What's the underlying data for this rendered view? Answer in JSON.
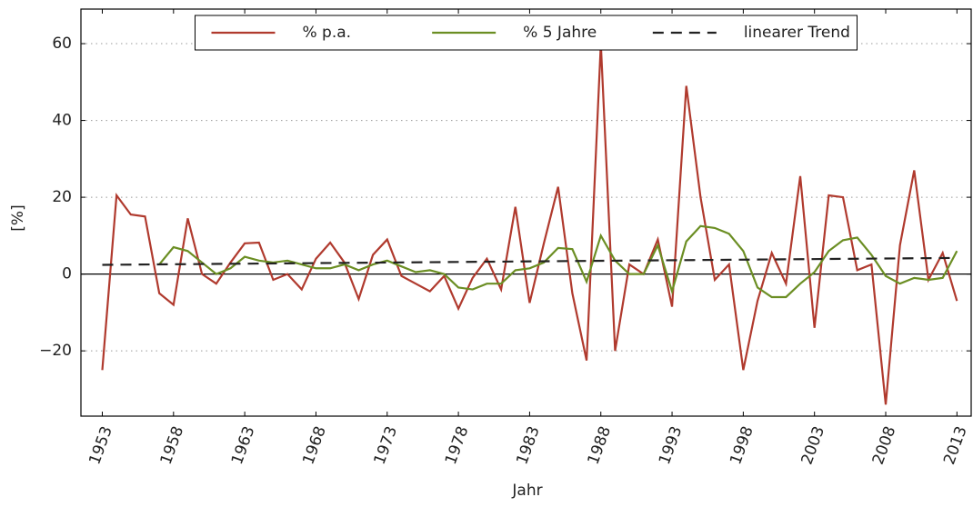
{
  "chart_data": {
    "type": "line",
    "x_label": "Jahr",
    "y_label": "[%]",
    "x": [
      1953,
      1954,
      1955,
      1956,
      1957,
      1958,
      1959,
      1960,
      1961,
      1962,
      1963,
      1964,
      1965,
      1966,
      1967,
      1968,
      1969,
      1970,
      1971,
      1972,
      1973,
      1974,
      1975,
      1976,
      1977,
      1978,
      1979,
      1980,
      1981,
      1982,
      1983,
      1984,
      1985,
      1986,
      1987,
      1988,
      1989,
      1990,
      1991,
      1992,
      1993,
      1994,
      1995,
      1996,
      1997,
      1998,
      1999,
      2000,
      2001,
      2002,
      2003,
      2004,
      2005,
      2006,
      2007,
      2008,
      2009,
      2010,
      2011,
      2012,
      2013
    ],
    "series": [
      {
        "name": "% p.a.",
        "color": "#b03a2e",
        "values": [
          -25,
          20.5,
          15.5,
          15,
          -5,
          -8,
          14.5,
          0,
          -2.5,
          3,
          8,
          8.2,
          -1.5,
          0,
          -4,
          4,
          8.2,
          3,
          -6.5,
          5,
          9,
          -0.5,
          -2.5,
          -4.5,
          -0.5,
          -9,
          -1,
          4,
          -4,
          17.5,
          -7.5,
          8,
          22.7,
          -5,
          -22.5,
          60,
          -20,
          2.5,
          0,
          9,
          -8.5,
          49,
          20,
          -1.5,
          2.5,
          -25,
          -7,
          5.5,
          -2.5,
          25.5,
          -14,
          20.5,
          20,
          1,
          2.5,
          -34,
          7.5,
          27,
          -1.5,
          5.5,
          -7
        ]
      },
      {
        "name": "% 5 Jahre",
        "color": "#6b8e23",
        "values": [
          null,
          null,
          null,
          null,
          2.5,
          7,
          6,
          3,
          0,
          1.5,
          4.5,
          3.5,
          3,
          3.5,
          2.5,
          1.5,
          1.5,
          2.5,
          1,
          2.5,
          3.5,
          2,
          0.5,
          1,
          0,
          -3.5,
          -4,
          -2.5,
          -2.5,
          1,
          1.5,
          3,
          6.8,
          6.5,
          -2,
          10,
          3.5,
          0,
          0,
          7.5,
          -4.5,
          8.5,
          12.5,
          12,
          10.5,
          6,
          -3.5,
          -6,
          -6,
          -2.5,
          0.5,
          6,
          8.8,
          9.5,
          5,
          -0.5,
          -2.5,
          -1,
          -1.5,
          -1,
          6
        ]
      },
      {
        "name": "linearer Trend",
        "color": "#222222",
        "dash": true,
        "x": [
          1953,
          2013
        ],
        "values": [
          2.4,
          4.2
        ]
      }
    ],
    "xlim": [
      1951.5,
      2014
    ],
    "xticks": [
      1953,
      1958,
      1963,
      1968,
      1973,
      1978,
      1983,
      1988,
      1993,
      1998,
      2003,
      2008,
      2013
    ],
    "ylim": [
      -37,
      69
    ],
    "yticks": [
      {
        "value": -20,
        "label": "−20"
      },
      0,
      20,
      40,
      60
    ],
    "grid": true,
    "zero_line": true,
    "legend": "upper center"
  }
}
